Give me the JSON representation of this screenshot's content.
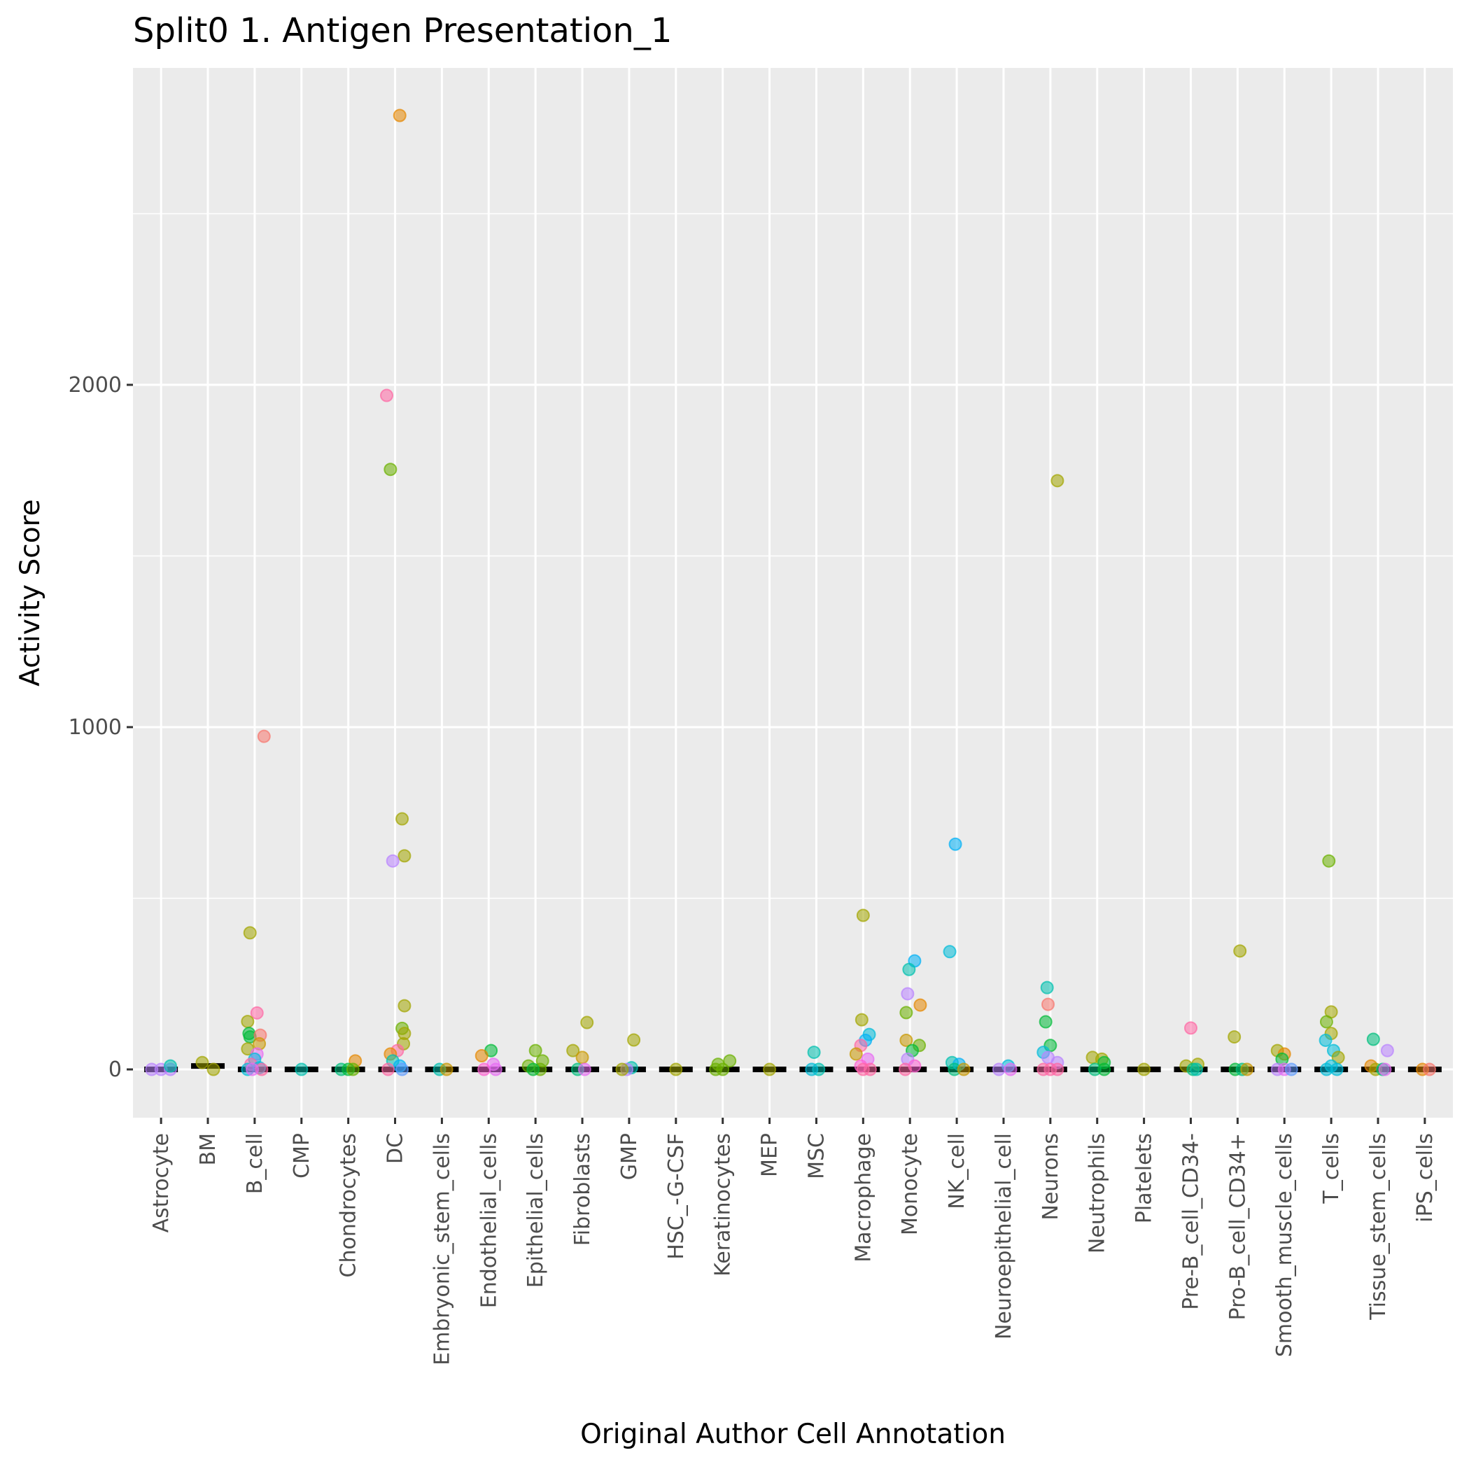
{
  "chart_data": {
    "type": "scatter",
    "subtype": "jitter-with-boxplot",
    "title": "Split0 1. Antigen Presentation_1",
    "xlabel": "Original Author Cell Annotation",
    "ylabel": "Activity Score",
    "ylim": [
      -141,
      2926
    ],
    "yticks": [
      0,
      1000,
      2000
    ],
    "ytick_labels": [
      "0",
      "1000",
      "2000"
    ],
    "y_minor_gridlines": [
      500,
      1500,
      2500
    ],
    "grid": true,
    "legend": "none",
    "categories": [
      "Astrocyte",
      "BM",
      "B_cell",
      "CMP",
      "Chondrocytes",
      "DC",
      "Embryonic_stem_cells",
      "Endothelial_cells",
      "Epithelial_cells",
      "Fibroblasts",
      "GMP",
      "HSC_-G-CSF",
      "Keratinocytes",
      "MEP",
      "MSC",
      "Macrophage",
      "Monocyte",
      "NK_cell",
      "Neuroepithelial_cell",
      "Neurons",
      "Neutrophils",
      "Platelets",
      "Pre-B_cell_CD34-",
      "Pro-B_cell_CD34+",
      "Smooth_muscle_cells",
      "T_cells",
      "Tissue_stem_cells",
      "iPS_cells"
    ],
    "palette": [
      "#F8766D",
      "#E58700",
      "#C99800",
      "#A3A500",
      "#6BB100",
      "#00BA38",
      "#00BF7D",
      "#00C0AF",
      "#00BCD8",
      "#00B0F6",
      "#619CFF",
      "#B983FF",
      "#E76BF3",
      "#FD61D1",
      "#FF67A4"
    ],
    "points": [
      {
        "cat": "Astrocyte",
        "y": 0,
        "c": "#B983FF",
        "dx": -0.2
      },
      {
        "cat": "Astrocyte",
        "y": 0,
        "c": "#B983FF",
        "dx": 0.0
      },
      {
        "cat": "Astrocyte",
        "y": 0,
        "c": "#B983FF",
        "dx": 0.2
      },
      {
        "cat": "Astrocyte",
        "y": 10,
        "c": "#00C0AF",
        "dx": 0.2
      },
      {
        "cat": "BM",
        "y": 20,
        "c": "#A3A500",
        "dx": -0.12
      },
      {
        "cat": "BM",
        "y": 0,
        "c": "#A3A500",
        "dx": 0.12
      },
      {
        "cat": "B_cell",
        "y": 973,
        "c": "#F8766D",
        "dx": 0.2
      },
      {
        "cat": "B_cell",
        "y": 399,
        "c": "#A3A500",
        "dx": -0.1
      },
      {
        "cat": "B_cell",
        "y": 165,
        "c": "#FF67A4",
        "dx": 0.05
      },
      {
        "cat": "B_cell",
        "y": 140,
        "c": "#A3A500",
        "dx": -0.15
      },
      {
        "cat": "B_cell",
        "y": 105,
        "c": "#00BA38",
        "dx": -0.12
      },
      {
        "cat": "B_cell",
        "y": 95,
        "c": "#00BA38",
        "dx": -0.1
      },
      {
        "cat": "B_cell",
        "y": 100,
        "c": "#F8766D",
        "dx": 0.12
      },
      {
        "cat": "B_cell",
        "y": 75,
        "c": "#C99800",
        "dx": 0.1
      },
      {
        "cat": "B_cell",
        "y": 60,
        "c": "#A3A500",
        "dx": -0.15
      },
      {
        "cat": "B_cell",
        "y": 45,
        "c": "#E76BF3",
        "dx": 0.05
      },
      {
        "cat": "B_cell",
        "y": 30,
        "c": "#00BCD8",
        "dx": 0.0
      },
      {
        "cat": "B_cell",
        "y": 15,
        "c": "#FF67A4",
        "dx": -0.08
      },
      {
        "cat": "B_cell",
        "y": 5,
        "c": "#00BCD8",
        "dx": 0.1
      },
      {
        "cat": "B_cell",
        "y": 0,
        "c": "#00BCD8",
        "dx": -0.15
      },
      {
        "cat": "B_cell",
        "y": 0,
        "c": "#FF67A4",
        "dx": 0.15
      },
      {
        "cat": "B_cell",
        "y": 0,
        "c": "#E76BF3",
        "dx": -0.05
      },
      {
        "cat": "CMP",
        "y": 0,
        "c": "#00C0AF",
        "dx": 0.0
      },
      {
        "cat": "Chondrocytes",
        "y": 25,
        "c": "#E58700",
        "dx": 0.15
      },
      {
        "cat": "Chondrocytes",
        "y": 0,
        "c": "#00BF7D",
        "dx": -0.15
      },
      {
        "cat": "Chondrocytes",
        "y": 0,
        "c": "#00BA38",
        "dx": 0.0
      },
      {
        "cat": "Chondrocytes",
        "y": 0,
        "c": "#6BB100",
        "dx": 0.1
      },
      {
        "cat": "DC",
        "y": 2787,
        "c": "#E58700",
        "dx": 0.1
      },
      {
        "cat": "DC",
        "y": 1969,
        "c": "#FF67A4",
        "dx": -0.18
      },
      {
        "cat": "DC",
        "y": 1753,
        "c": "#6BB100",
        "dx": -0.1
      },
      {
        "cat": "DC",
        "y": 732,
        "c": "#A3A500",
        "dx": 0.15
      },
      {
        "cat": "DC",
        "y": 624,
        "c": "#A3A500",
        "dx": 0.2
      },
      {
        "cat": "DC",
        "y": 609,
        "c": "#B983FF",
        "dx": -0.05
      },
      {
        "cat": "DC",
        "y": 186,
        "c": "#A3A500",
        "dx": 0.2
      },
      {
        "cat": "DC",
        "y": 120,
        "c": "#6BB100",
        "dx": 0.15
      },
      {
        "cat": "DC",
        "y": 105,
        "c": "#A3A500",
        "dx": 0.2
      },
      {
        "cat": "DC",
        "y": 75,
        "c": "#A3A500",
        "dx": 0.18
      },
      {
        "cat": "DC",
        "y": 55,
        "c": "#FF67A4",
        "dx": 0.05
      },
      {
        "cat": "DC",
        "y": 45,
        "c": "#E58700",
        "dx": -0.1
      },
      {
        "cat": "DC",
        "y": 25,
        "c": "#00C0AF",
        "dx": -0.05
      },
      {
        "cat": "DC",
        "y": 10,
        "c": "#00B0F6",
        "dx": 0.1
      },
      {
        "cat": "DC",
        "y": 0,
        "c": "#FF67A4",
        "dx": -0.15
      },
      {
        "cat": "DC",
        "y": 0,
        "c": "#619CFF",
        "dx": 0.15
      },
      {
        "cat": "Embryonic_stem_cells",
        "y": 0,
        "c": "#00C0AF",
        "dx": -0.05
      },
      {
        "cat": "Embryonic_stem_cells",
        "y": 0,
        "c": "#C99800",
        "dx": 0.1
      },
      {
        "cat": "Endothelial_cells",
        "y": 55,
        "c": "#00BA38",
        "dx": 0.05
      },
      {
        "cat": "Endothelial_cells",
        "y": 40,
        "c": "#E58700",
        "dx": -0.15
      },
      {
        "cat": "Endothelial_cells",
        "y": 15,
        "c": "#E76BF3",
        "dx": 0.1
      },
      {
        "cat": "Endothelial_cells",
        "y": 0,
        "c": "#FD61D1",
        "dx": -0.1
      },
      {
        "cat": "Endothelial_cells",
        "y": 0,
        "c": "#E76BF3",
        "dx": 0.15
      },
      {
        "cat": "Epithelial_cells",
        "y": 55,
        "c": "#6BB100",
        "dx": 0.0
      },
      {
        "cat": "Epithelial_cells",
        "y": 25,
        "c": "#6BB100",
        "dx": 0.15
      },
      {
        "cat": "Epithelial_cells",
        "y": 10,
        "c": "#6BB100",
        "dx": -0.15
      },
      {
        "cat": "Epithelial_cells",
        "y": 0,
        "c": "#6BB100",
        "dx": 0.1
      },
      {
        "cat": "Epithelial_cells",
        "y": 0,
        "c": "#00BA38",
        "dx": -0.05
      },
      {
        "cat": "Fibroblasts",
        "y": 137,
        "c": "#A3A500",
        "dx": 0.1
      },
      {
        "cat": "Fibroblasts",
        "y": 55,
        "c": "#A3A500",
        "dx": -0.2
      },
      {
        "cat": "Fibroblasts",
        "y": 35,
        "c": "#C99800",
        "dx": 0.0
      },
      {
        "cat": "Fibroblasts",
        "y": 0,
        "c": "#00BF7D",
        "dx": -0.1
      },
      {
        "cat": "Fibroblasts",
        "y": 0,
        "c": "#E76BF3",
        "dx": 0.05
      },
      {
        "cat": "GMP",
        "y": 86,
        "c": "#A3A500",
        "dx": 0.1
      },
      {
        "cat": "GMP",
        "y": 5,
        "c": "#00C0AF",
        "dx": 0.05
      },
      {
        "cat": "GMP",
        "y": 0,
        "c": "#B983FF",
        "dx": -0.05
      },
      {
        "cat": "GMP",
        "y": 0,
        "c": "#A3A500",
        "dx": -0.15
      },
      {
        "cat": "HSC_-G-CSF",
        "y": 0,
        "c": "#A3A500",
        "dx": 0.0
      },
      {
        "cat": "Keratinocytes",
        "y": 25,
        "c": "#6BB100",
        "dx": 0.15
      },
      {
        "cat": "Keratinocytes",
        "y": 15,
        "c": "#6BB100",
        "dx": -0.1
      },
      {
        "cat": "Keratinocytes",
        "y": 0,
        "c": "#6BB100",
        "dx": 0.0
      },
      {
        "cat": "Keratinocytes",
        "y": 0,
        "c": "#6BB100",
        "dx": -0.15
      },
      {
        "cat": "MEP",
        "y": 0,
        "c": "#A3A500",
        "dx": 0.0
      },
      {
        "cat": "MSC",
        "y": 50,
        "c": "#00C0AF",
        "dx": -0.05
      },
      {
        "cat": "MSC",
        "y": 0,
        "c": "#00C0AF",
        "dx": 0.05
      },
      {
        "cat": "MSC",
        "y": 0,
        "c": "#00BCD8",
        "dx": -0.1
      },
      {
        "cat": "Macrophage",
        "y": 450,
        "c": "#A3A500",
        "dx": 0.0
      },
      {
        "cat": "Macrophage",
        "y": 145,
        "c": "#A3A500",
        "dx": -0.03
      },
      {
        "cat": "Macrophage",
        "y": 102,
        "c": "#00BCD8",
        "dx": 0.13
      },
      {
        "cat": "Macrophage",
        "y": 85,
        "c": "#00B0F6",
        "dx": 0.05
      },
      {
        "cat": "Macrophage",
        "y": 70,
        "c": "#FF67A4",
        "dx": -0.05
      },
      {
        "cat": "Macrophage",
        "y": 45,
        "c": "#C99800",
        "dx": -0.15
      },
      {
        "cat": "Macrophage",
        "y": 30,
        "c": "#E76BF3",
        "dx": 0.1
      },
      {
        "cat": "Macrophage",
        "y": 10,
        "c": "#FD61D1",
        "dx": -0.05
      },
      {
        "cat": "Macrophage",
        "y": 0,
        "c": "#FF67A4",
        "dx": 0.0
      },
      {
        "cat": "Macrophage",
        "y": 0,
        "c": "#FF67A4",
        "dx": 0.15
      },
      {
        "cat": "Monocyte",
        "y": 317,
        "c": "#00B0F6",
        "dx": 0.1
      },
      {
        "cat": "Monocyte",
        "y": 292,
        "c": "#00C0AF",
        "dx": -0.02
      },
      {
        "cat": "Monocyte",
        "y": 221,
        "c": "#B983FF",
        "dx": -0.05
      },
      {
        "cat": "Monocyte",
        "y": 188,
        "c": "#E58700",
        "dx": 0.22
      },
      {
        "cat": "Monocyte",
        "y": 166,
        "c": "#6BB100",
        "dx": -0.08
      },
      {
        "cat": "Monocyte",
        "y": 85,
        "c": "#C99800",
        "dx": -0.08
      },
      {
        "cat": "Monocyte",
        "y": 70,
        "c": "#6BB100",
        "dx": 0.2
      },
      {
        "cat": "Monocyte",
        "y": 55,
        "c": "#00BA38",
        "dx": 0.05
      },
      {
        "cat": "Monocyte",
        "y": 30,
        "c": "#B983FF",
        "dx": -0.05
      },
      {
        "cat": "Monocyte",
        "y": 10,
        "c": "#FD61D1",
        "dx": 0.1
      },
      {
        "cat": "Monocyte",
        "y": 0,
        "c": "#FF67A4",
        "dx": -0.1
      },
      {
        "cat": "NK_cell",
        "y": 658,
        "c": "#00B0F6",
        "dx": -0.03
      },
      {
        "cat": "NK_cell",
        "y": 344,
        "c": "#00BCD8",
        "dx": -0.15
      },
      {
        "cat": "NK_cell",
        "y": 20,
        "c": "#00C0AF",
        "dx": -0.1
      },
      {
        "cat": "NK_cell",
        "y": 15,
        "c": "#00B0F6",
        "dx": 0.05
      },
      {
        "cat": "NK_cell",
        "y": 0,
        "c": "#00BF7D",
        "dx": -0.05
      },
      {
        "cat": "NK_cell",
        "y": 0,
        "c": "#C99800",
        "dx": 0.15
      },
      {
        "cat": "Neuroepithelial_cell",
        "y": 10,
        "c": "#00BCD8",
        "dx": 0.1
      },
      {
        "cat": "Neuroepithelial_cell",
        "y": 0,
        "c": "#B983FF",
        "dx": -0.1
      },
      {
        "cat": "Neuroepithelial_cell",
        "y": 0,
        "c": "#E76BF3",
        "dx": 0.15
      },
      {
        "cat": "Neurons",
        "y": 1720,
        "c": "#A3A500",
        "dx": 0.15
      },
      {
        "cat": "Neurons",
        "y": 239,
        "c": "#00C0AF",
        "dx": -0.07
      },
      {
        "cat": "Neurons",
        "y": 190,
        "c": "#F8766D",
        "dx": -0.05
      },
      {
        "cat": "Neurons",
        "y": 139,
        "c": "#00BA38",
        "dx": -0.1
      },
      {
        "cat": "Neurons",
        "y": 70,
        "c": "#00BA38",
        "dx": 0.0
      },
      {
        "cat": "Neurons",
        "y": 50,
        "c": "#00BCD8",
        "dx": -0.15
      },
      {
        "cat": "Neurons",
        "y": 35,
        "c": "#B983FF",
        "dx": -0.05
      },
      {
        "cat": "Neurons",
        "y": 20,
        "c": "#B983FF",
        "dx": 0.15
      },
      {
        "cat": "Neurons",
        "y": 0,
        "c": "#FF67A4",
        "dx": -0.15
      },
      {
        "cat": "Neurons",
        "y": 0,
        "c": "#FF67A4",
        "dx": 0.0
      },
      {
        "cat": "Neurons",
        "y": 0,
        "c": "#FF67A4",
        "dx": 0.15
      },
      {
        "cat": "Neutrophils",
        "y": 35,
        "c": "#A3A500",
        "dx": -0.1
      },
      {
        "cat": "Neutrophils",
        "y": 30,
        "c": "#A3A500",
        "dx": 0.1
      },
      {
        "cat": "Neutrophils",
        "y": 20,
        "c": "#00BA38",
        "dx": 0.15
      },
      {
        "cat": "Neutrophils",
        "y": 0,
        "c": "#00BF7D",
        "dx": -0.05
      },
      {
        "cat": "Neutrophils",
        "y": 0,
        "c": "#00BA38",
        "dx": 0.15
      },
      {
        "cat": "Platelets",
        "y": 0,
        "c": "#A3A500",
        "dx": 0.0
      },
      {
        "cat": "Pre-B_cell_CD34-",
        "y": 121,
        "c": "#FF67A4",
        "dx": 0.0
      },
      {
        "cat": "Pre-B_cell_CD34-",
        "y": 10,
        "c": "#A3A500",
        "dx": -0.1
      },
      {
        "cat": "Pre-B_cell_CD34-",
        "y": 15,
        "c": "#A3A500",
        "dx": 0.15
      },
      {
        "cat": "Pre-B_cell_CD34-",
        "y": 0,
        "c": "#00BF7D",
        "dx": 0.05
      },
      {
        "cat": "Pre-B_cell_CD34-",
        "y": 0,
        "c": "#00C0AF",
        "dx": 0.12
      },
      {
        "cat": "Pro-B_cell_CD34+",
        "y": 346,
        "c": "#A3A500",
        "dx": 0.05
      },
      {
        "cat": "Pro-B_cell_CD34+",
        "y": 95,
        "c": "#A3A500",
        "dx": -0.07
      },
      {
        "cat": "Pro-B_cell_CD34+",
        "y": 0,
        "c": "#00BA38",
        "dx": -0.05
      },
      {
        "cat": "Pro-B_cell_CD34+",
        "y": 0,
        "c": "#00BF7D",
        "dx": 0.1
      },
      {
        "cat": "Pro-B_cell_CD34+",
        "y": 0,
        "c": "#C99800",
        "dx": 0.2
      },
      {
        "cat": "Smooth_muscle_cells",
        "y": 55,
        "c": "#A3A500",
        "dx": -0.15
      },
      {
        "cat": "Smooth_muscle_cells",
        "y": 45,
        "c": "#E58700",
        "dx": 0.0
      },
      {
        "cat": "Smooth_muscle_cells",
        "y": 30,
        "c": "#00BA38",
        "dx": -0.05
      },
      {
        "cat": "Smooth_muscle_cells",
        "y": 0,
        "c": "#B983FF",
        "dx": -0.15
      },
      {
        "cat": "Smooth_muscle_cells",
        "y": 0,
        "c": "#E76BF3",
        "dx": 0.0
      },
      {
        "cat": "Smooth_muscle_cells",
        "y": 0,
        "c": "#619CFF",
        "dx": 0.15
      },
      {
        "cat": "T_cells",
        "y": 609,
        "c": "#6BB100",
        "dx": -0.05
      },
      {
        "cat": "T_cells",
        "y": 168,
        "c": "#A3A500",
        "dx": 0.0
      },
      {
        "cat": "T_cells",
        "y": 139,
        "c": "#6BB100",
        "dx": -0.1
      },
      {
        "cat": "T_cells",
        "y": 105,
        "c": "#A3A500",
        "dx": 0.0
      },
      {
        "cat": "T_cells",
        "y": 85,
        "c": "#00BCD8",
        "dx": -0.12
      },
      {
        "cat": "T_cells",
        "y": 55,
        "c": "#00BCD8",
        "dx": 0.05
      },
      {
        "cat": "T_cells",
        "y": 35,
        "c": "#A3A500",
        "dx": 0.15
      },
      {
        "cat": "T_cells",
        "y": 10,
        "c": "#00BCD8",
        "dx": 0.0
      },
      {
        "cat": "T_cells",
        "y": 0,
        "c": "#00BCD8",
        "dx": -0.1
      },
      {
        "cat": "T_cells",
        "y": 0,
        "c": "#00BCD8",
        "dx": 0.12
      },
      {
        "cat": "Tissue_stem_cells",
        "y": 88,
        "c": "#00BF7D",
        "dx": -0.1
      },
      {
        "cat": "Tissue_stem_cells",
        "y": 55,
        "c": "#B983FF",
        "dx": 0.2
      },
      {
        "cat": "Tissue_stem_cells",
        "y": 10,
        "c": "#E58700",
        "dx": -0.15
      },
      {
        "cat": "Tissue_stem_cells",
        "y": 0,
        "c": "#A3A500",
        "dx": -0.05
      },
      {
        "cat": "Tissue_stem_cells",
        "y": 0,
        "c": "#00BF7D",
        "dx": 0.1
      },
      {
        "cat": "Tissue_stem_cells",
        "y": 0,
        "c": "#E76BF3",
        "dx": 0.15
      },
      {
        "cat": "iPS_cells",
        "y": 0,
        "c": "#E58700",
        "dx": -0.05
      },
      {
        "cat": "iPS_cells",
        "y": 0,
        "c": "#F8766D",
        "dx": 0.1
      }
    ],
    "boxes": [
      {
        "cat": "Astrocyte",
        "median": 0
      },
      {
        "cat": "BM",
        "median": 10
      },
      {
        "cat": "B_cell",
        "median": 0
      },
      {
        "cat": "CMP",
        "median": 0
      },
      {
        "cat": "Chondrocytes",
        "median": 0
      },
      {
        "cat": "DC",
        "median": 0
      },
      {
        "cat": "Embryonic_stem_cells",
        "median": 0
      },
      {
        "cat": "Endothelial_cells",
        "median": 0
      },
      {
        "cat": "Epithelial_cells",
        "median": 0
      },
      {
        "cat": "Fibroblasts",
        "median": 0
      },
      {
        "cat": "GMP",
        "median": 0
      },
      {
        "cat": "HSC_-G-CSF",
        "median": 0
      },
      {
        "cat": "Keratinocytes",
        "median": 0
      },
      {
        "cat": "MEP",
        "median": 0
      },
      {
        "cat": "MSC",
        "median": 0
      },
      {
        "cat": "Macrophage",
        "median": 0
      },
      {
        "cat": "Monocyte",
        "median": 0
      },
      {
        "cat": "NK_cell",
        "median": 0
      },
      {
        "cat": "Neuroepithelial_cell",
        "median": 0
      },
      {
        "cat": "Neurons",
        "median": 0
      },
      {
        "cat": "Neutrophils",
        "median": 0
      },
      {
        "cat": "Platelets",
        "median": 0
      },
      {
        "cat": "Pre-B_cell_CD34-",
        "median": 0
      },
      {
        "cat": "Pro-B_cell_CD34+",
        "median": 0
      },
      {
        "cat": "Smooth_muscle_cells",
        "median": 0
      },
      {
        "cat": "T_cells",
        "median": 0
      },
      {
        "cat": "Tissue_stem_cells",
        "median": 0
      },
      {
        "cat": "iPS_cells",
        "median": 0
      }
    ]
  },
  "colors": {
    "panel_background": "#EBEBEB",
    "grid": "#FFFFFF",
    "tick_text": "#4D4D4D",
    "tick_mark": "#333333",
    "box": "#000000"
  }
}
